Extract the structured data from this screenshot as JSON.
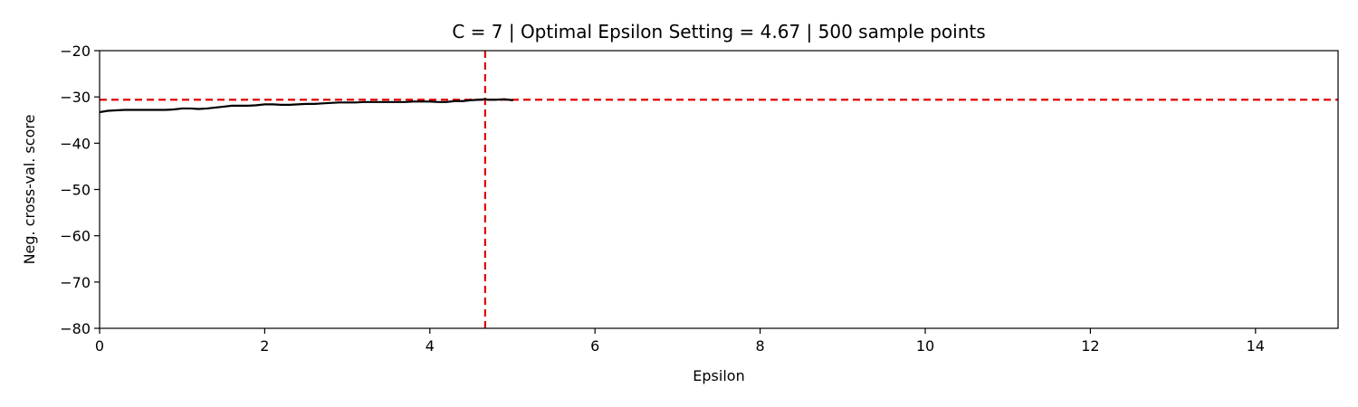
{
  "chart_data": {
    "type": "line",
    "title": "C = 7 | Optimal Epsilon Setting = 4.67 | 500 sample points",
    "xlabel": "Epsilon",
    "ylabel": "Neg. cross-val. score",
    "xlim": [
      0,
      15
    ],
    "ylim": [
      -80,
      -20
    ],
    "xticks": [
      0,
      2,
      4,
      6,
      8,
      10,
      12,
      14
    ],
    "yticks": [
      -80,
      -70,
      -60,
      -50,
      -40,
      -30,
      -20
    ],
    "xtick_labels": [
      "0",
      "2",
      "4",
      "6",
      "8",
      "10",
      "12",
      "14"
    ],
    "ytick_labels": [
      "−80",
      "−70",
      "−60",
      "−50",
      "−40",
      "−30",
      "−20"
    ],
    "grid": false,
    "series": [
      {
        "color": "#000000",
        "x": [
          0,
          0.1,
          0.2,
          0.3,
          0.4,
          0.5,
          0.6,
          0.7,
          0.8,
          0.9,
          1.0,
          1.1,
          1.2,
          1.3,
          1.4,
          1.5,
          1.6,
          1.7,
          1.8,
          1.9,
          2.0,
          2.1,
          2.2,
          2.3,
          2.4,
          2.5,
          2.6,
          2.7,
          2.8,
          2.9,
          3.0,
          3.1,
          3.2,
          3.3,
          3.4,
          3.5,
          3.6,
          3.7,
          3.8,
          3.9,
          4.0,
          4.1,
          4.2,
          4.3,
          4.4,
          4.5,
          4.6,
          4.67,
          4.7,
          4.8,
          4.9,
          5.0
        ],
        "y": [
          -33.3,
          -33.0,
          -32.9,
          -32.8,
          -32.8,
          -32.8,
          -32.8,
          -32.8,
          -32.8,
          -32.7,
          -32.5,
          -32.5,
          -32.6,
          -32.5,
          -32.3,
          -32.1,
          -31.9,
          -31.9,
          -31.9,
          -31.8,
          -31.6,
          -31.6,
          -31.7,
          -31.7,
          -31.6,
          -31.5,
          -31.5,
          -31.4,
          -31.3,
          -31.2,
          -31.2,
          -31.2,
          -31.1,
          -31.1,
          -31.1,
          -31.1,
          -31.1,
          -31.1,
          -31.0,
          -31.0,
          -31.0,
          -31.1,
          -31.1,
          -30.9,
          -30.9,
          -30.7,
          -30.6,
          -30.5,
          -30.6,
          -30.6,
          -30.5,
          -30.7
        ]
      }
    ],
    "reference_lines": [
      {
        "orientation": "vertical",
        "x": 4.67,
        "color": "#e00000",
        "style": "dashed"
      },
      {
        "orientation": "horizontal",
        "y": -30.6,
        "color": "#e00000",
        "style": "dashed"
      }
    ]
  }
}
